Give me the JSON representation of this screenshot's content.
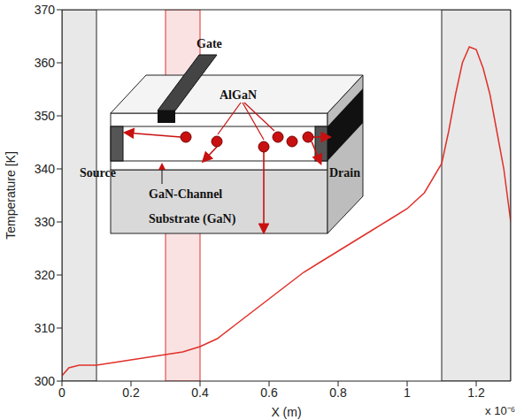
{
  "chart_data": {
    "type": "line",
    "x_label": "X (m)",
    "y_label": "Temperature [K]",
    "x_offset_label": "x 10⁻⁶",
    "x": [
      0,
      2e-08,
      5e-08,
      1e-07,
      1.5e-07,
      2e-07,
      2.5e-07,
      3e-07,
      3.5e-07,
      4e-07,
      4.5e-07,
      5e-07,
      5.5e-07,
      6e-07,
      6.5e-07,
      7e-07,
      7.5e-07,
      8e-07,
      8.5e-07,
      9e-07,
      9.5e-07,
      1e-06,
      1.05e-06,
      1.1e-06,
      1.12e-06,
      1.14e-06,
      1.16e-06,
      1.18e-06,
      1.2e-06,
      1.22e-06,
      1.24e-06,
      1.26e-06,
      1.28e-06,
      1.3e-06
    ],
    "values": [
      301,
      302.5,
      303,
      303,
      303.5,
      304,
      304.5,
      305,
      305.5,
      306.5,
      308,
      310.5,
      313,
      315.5,
      318,
      320.5,
      322.5,
      324.5,
      326.5,
      328.5,
      330.5,
      332.5,
      335.5,
      341,
      347,
      354,
      360,
      363,
      362.5,
      359,
      354,
      347,
      340,
      330
    ],
    "color": "#e0302a",
    "xlim": [
      0,
      1.3e-06
    ],
    "xticks": [
      0,
      {
        "value": 2e-07,
        "label": "0.2"
      },
      {
        "value": 4e-07,
        "label": "0.4"
      },
      {
        "value": 6e-07,
        "label": "0.6"
      },
      {
        "value": 8e-07,
        "label": "0.8"
      },
      {
        "value": 1e-06,
        "label": "1"
      },
      {
        "value": 1.2e-06,
        "label": "1.2"
      }
    ],
    "ylim": [
      300,
      370
    ],
    "yticks": [
      300,
      310,
      320,
      330,
      340,
      350,
      360,
      370
    ],
    "regions": [
      {
        "xlim": [
          0,
          1e-07
        ],
        "color": "#e8e8e8"
      },
      {
        "xlim": [
          3e-07,
          4e-07
        ],
        "color": "#fbe2e2"
      },
      {
        "xlim": [
          1.1e-06,
          1.3e-06
        ],
        "color": "#e8e8e8"
      }
    ],
    "inset_labels": {
      "gate": "Gate",
      "barrier": "AlGaN",
      "source": "Source",
      "channel": "GaN-Channel",
      "drain": "Drain",
      "substrate": "Substrate (GaN)"
    }
  }
}
